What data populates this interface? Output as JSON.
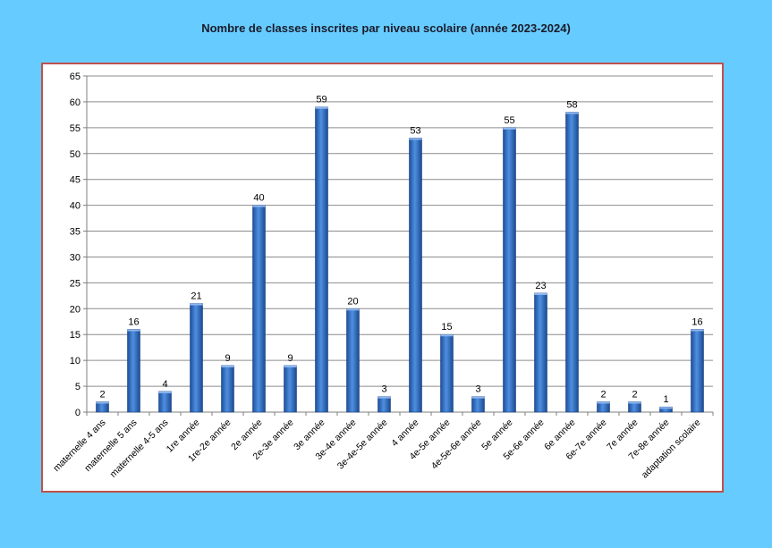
{
  "chart_data": {
    "type": "bar",
    "title": "Nombre de classes inscrites par niveau scolaire (année 2023-2024)",
    "xlabel": "",
    "ylabel": "",
    "ylim": [
      0,
      65
    ],
    "yticks": [
      0,
      5,
      10,
      15,
      20,
      25,
      30,
      35,
      40,
      45,
      50,
      55,
      60,
      65
    ],
    "grid": true,
    "legend": "none",
    "bar_color": "#2f6fc4",
    "frame_color": "#c0504d",
    "background_color": "#66ccff",
    "categories": [
      "maternelle 4 ans",
      "maternelle 5 ans",
      "maternelle 4-5 ans",
      "1re année",
      "1re-2e année",
      "2e année",
      "2e-3e année",
      "3e année",
      "3e-4e année",
      "3e-4e-5e année",
      "4 année",
      "4e-5e année",
      "4e-5e-6e année",
      "5e année",
      "5e-6e année",
      "6e année",
      "6e-7e année",
      "7e année",
      "7e-8e année",
      "adaptation scolaire"
    ],
    "values": [
      2,
      16,
      4,
      21,
      9,
      40,
      9,
      59,
      20,
      3,
      53,
      15,
      3,
      55,
      23,
      58,
      2,
      2,
      1,
      16
    ]
  }
}
